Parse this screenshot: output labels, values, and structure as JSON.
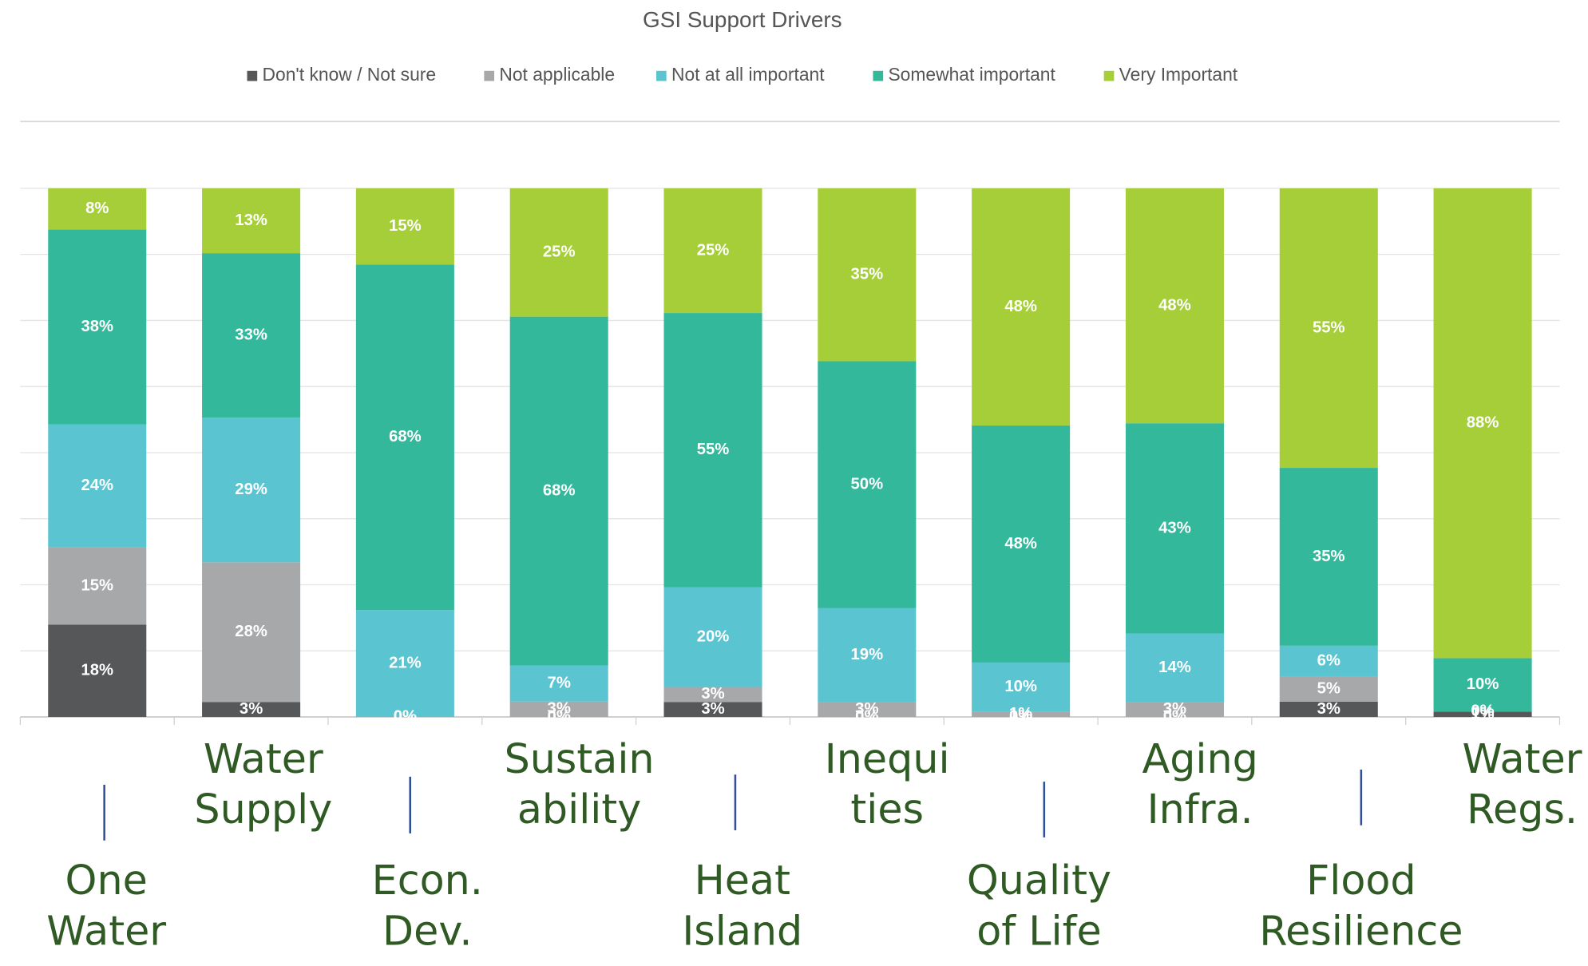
{
  "chart_data": {
    "type": "stacked100",
    "title": "GSI Support Drivers",
    "categories": [
      "One\nWater",
      "Water\nSupply",
      "Econ.\nDev.",
      "Sustain\nability",
      "Heat\nIsland",
      "Inequi\nties",
      "Quality\nof Life",
      "Aging\nInfra.",
      "Flood\nResilience",
      "Water\nRegs."
    ],
    "series": [
      {
        "name": "Don't know / Not sure",
        "color": "#555759",
        "values": [
          18,
          3,
          0,
          0,
          3,
          0,
          0,
          0,
          3,
          1
        ]
      },
      {
        "name": "Not applicable",
        "color": "#a7a8aa",
        "values": [
          15,
          28,
          0,
          3,
          3,
          3,
          1,
          3,
          5,
          0
        ]
      },
      {
        "name": "Not at all important",
        "color": "#5bc4d1",
        "values": [
          24,
          29,
          21,
          7,
          20,
          19,
          10,
          14,
          6,
          0
        ]
      },
      {
        "name": "Somewhat important",
        "color": "#33b89c",
        "values": [
          38,
          33,
          68,
          68,
          55,
          50,
          48,
          43,
          35,
          10
        ]
      },
      {
        "name": "Very Important",
        "color": "#a6ce39",
        "values": [
          8,
          13,
          15,
          25,
          25,
          35,
          48,
          48,
          55,
          88
        ]
      }
    ],
    "value_labels": [
      [
        "18%",
        "3%",
        "0%",
        "0%",
        "3%",
        "0%",
        "0%",
        "0%",
        "3%",
        "1%"
      ],
      [
        "15%",
        "28%",
        "0%",
        "3%",
        "3%",
        "3%",
        "1%",
        "3%",
        "5%",
        "0%"
      ],
      [
        "24%",
        "29%",
        "21%",
        "7%",
        "20%",
        "19%",
        "10%",
        "14%",
        "6%",
        "0%"
      ],
      [
        "38%",
        "33%",
        "68%",
        "68%",
        "55%",
        "50%",
        "48%",
        "43%",
        "35%",
        "10%"
      ],
      [
        "8%",
        "13%",
        "15%",
        "25%",
        "25%",
        "35%",
        "48%",
        "48%",
        "55%",
        "88%"
      ]
    ],
    "grid": true,
    "legend": "top"
  }
}
